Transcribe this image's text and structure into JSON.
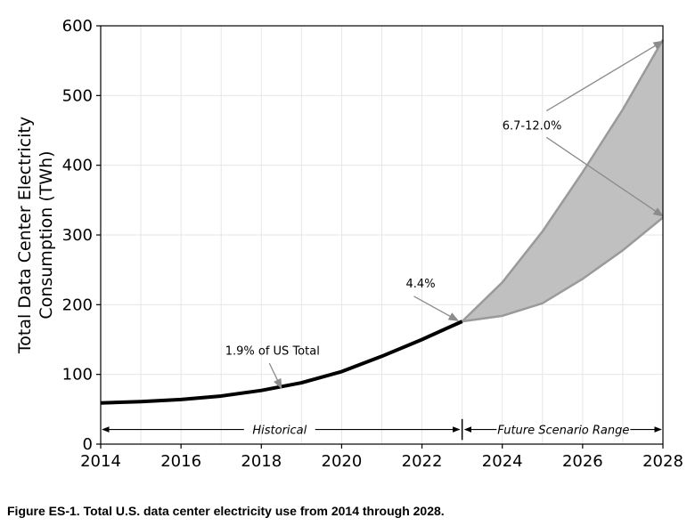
{
  "caption": "Figure ES-1. Total U.S. data center electricity use from 2014 through 2028.",
  "chart_data": {
    "type": "line",
    "ylabel_line1": "Total Data Center Electricity",
    "ylabel_line2": "Consumption (TWh)",
    "xlim": [
      2014,
      2028
    ],
    "ylim": [
      0,
      600
    ],
    "xticks": [
      2014,
      2016,
      2018,
      2020,
      2022,
      2024,
      2026,
      2028
    ],
    "yticks": [
      0,
      100,
      200,
      300,
      400,
      500,
      600
    ],
    "grid": true,
    "historical": {
      "x": [
        2014,
        2015,
        2016,
        2017,
        2018,
        2019,
        2020,
        2021,
        2022,
        2023
      ],
      "y": [
        59,
        61,
        64,
        69,
        77,
        88,
        104,
        126,
        150,
        176
      ],
      "color": "#000000"
    },
    "scenario_range": {
      "x": [
        2023,
        2024,
        2025,
        2026,
        2027,
        2028
      ],
      "upper": [
        176,
        232,
        305,
        390,
        480,
        580
      ],
      "lower": [
        176,
        184,
        202,
        237,
        278,
        325
      ],
      "fill": "#c0c0c0",
      "edge": "#9a9a9a"
    },
    "annotations": [
      {
        "text": "1.9% of US Total",
        "x": 2017.1,
        "y": 128,
        "arrow_to": [
          2018.5,
          80
        ]
      },
      {
        "text": "4.4%",
        "x": 2021.6,
        "y": 225,
        "arrow_to": [
          2022.9,
          177
        ]
      },
      {
        "text": "6.7-12.0%",
        "x": 2024,
        "y": 451,
        "arrow_to": [
          2028,
          578
        ],
        "arrow_to2": [
          2028,
          327
        ]
      }
    ],
    "span_labels": {
      "historical": "Historical",
      "future": "Future Scenario Range"
    },
    "divider_x": 2023
  }
}
